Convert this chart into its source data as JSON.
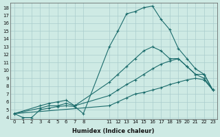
{
  "xlabel": "Humidex (Indice chaleur)",
  "bg_color": "#ceeae4",
  "grid_color": "#aacccc",
  "line_color": "#1a6b6b",
  "xlim": [
    -0.5,
    23.5
  ],
  "ylim": [
    3.8,
    18.6
  ],
  "xticks": [
    0,
    1,
    2,
    3,
    4,
    5,
    6,
    7,
    8,
    11,
    12,
    13,
    14,
    15,
    16,
    17,
    18,
    19,
    20,
    21,
    22,
    23
  ],
  "yticks": [
    4,
    5,
    6,
    7,
    8,
    9,
    10,
    11,
    12,
    13,
    14,
    15,
    16,
    17,
    18
  ],
  "lines": [
    {
      "x": [
        0,
        1,
        2,
        3,
        4,
        5,
        6,
        7,
        8,
        11,
        12,
        13,
        14,
        15,
        16,
        17,
        18,
        19,
        20,
        21,
        22,
        23
      ],
      "y": [
        4.5,
        4.0,
        4.0,
        5.0,
        5.2,
        5.4,
        5.5,
        5.4,
        4.5,
        13.0,
        15.0,
        17.2,
        17.5,
        18.0,
        18.2,
        16.5,
        15.2,
        12.8,
        11.5,
        10.2,
        9.5,
        7.5
      ]
    },
    {
      "x": [
        0,
        3,
        4,
        5,
        6,
        7,
        11,
        12,
        13,
        14,
        15,
        16,
        17,
        18,
        19,
        20,
        21,
        22,
        23
      ],
      "y": [
        4.5,
        5.5,
        5.8,
        6.0,
        6.2,
        5.5,
        8.5,
        9.5,
        10.5,
        11.5,
        12.5,
        13.0,
        12.5,
        11.5,
        11.5,
        10.5,
        9.5,
        9.5,
        7.5
      ]
    },
    {
      "x": [
        0,
        3,
        4,
        5,
        6,
        7,
        11,
        12,
        13,
        14,
        15,
        16,
        17,
        18,
        19,
        20,
        21,
        22,
        23
      ],
      "y": [
        4.5,
        5.2,
        5.5,
        5.5,
        5.8,
        5.5,
        6.8,
        7.5,
        8.2,
        8.8,
        9.5,
        10.2,
        10.8,
        11.2,
        11.5,
        10.5,
        9.5,
        9.0,
        7.5
      ]
    },
    {
      "x": [
        0,
        11,
        12,
        13,
        14,
        15,
        16,
        17,
        18,
        19,
        20,
        21,
        22,
        23
      ],
      "y": [
        4.5,
        5.5,
        6.0,
        6.5,
        7.0,
        7.2,
        7.5,
        7.8,
        8.2,
        8.5,
        8.8,
        9.0,
        8.8,
        7.5
      ]
    }
  ]
}
